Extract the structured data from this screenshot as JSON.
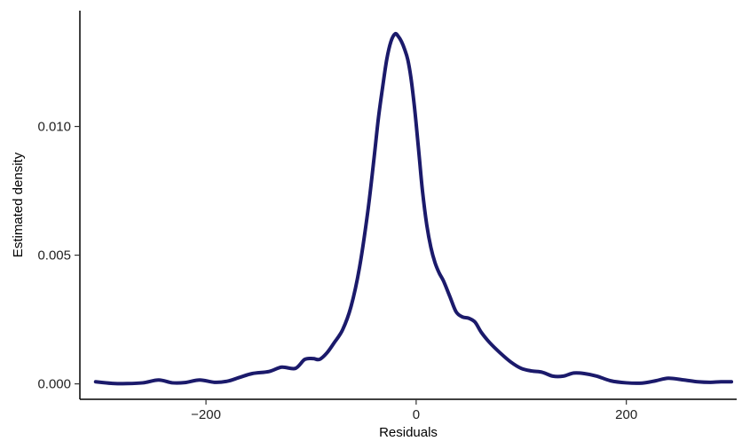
{
  "chart_data": {
    "type": "line",
    "title": "",
    "xlabel": "Residuals",
    "ylabel": "Estimated density",
    "xlim": [
      -320,
      305
    ],
    "ylim": [
      -0.0006,
      0.0145
    ],
    "x_ticks": [
      -200,
      0,
      200
    ],
    "x_tick_labels": [
      "−200",
      "0",
      "200"
    ],
    "y_ticks": [
      0.0,
      0.005,
      0.01
    ],
    "y_tick_labels": [
      "0.000",
      "0.005",
      "0.010"
    ],
    "grid": false,
    "legend": "none",
    "line_color": "#1b1a6b",
    "series": [
      {
        "x": [
          -305,
          -290,
          -275,
          -260,
          -245,
          -232,
          -220,
          -206,
          -192,
          -180,
          -168,
          -156,
          -140,
          -128,
          -115,
          -106,
          -98,
          -92,
          -85,
          -78,
          -70,
          -62,
          -54,
          -46,
          -40,
          -36,
          -32,
          -28,
          -24,
          -20,
          -17,
          -14,
          -11,
          -8,
          -5,
          -2,
          0,
          3,
          6,
          10,
          14,
          18,
          22,
          26,
          32,
          38,
          44,
          50,
          56,
          62,
          70,
          80,
          90,
          100,
          110,
          120,
          130,
          140,
          150,
          160,
          172,
          185,
          200,
          215,
          228,
          240,
          255,
          268,
          280,
          290,
          300
        ],
        "y": [
          8e-05,
          2e-05,
          1e-05,
          4e-05,
          0.00015,
          4e-05,
          5e-05,
          0.00015,
          6e-05,
          0.0001,
          0.00025,
          0.0004,
          0.00048,
          0.00065,
          0.0006,
          0.00095,
          0.00098,
          0.00095,
          0.0012,
          0.0016,
          0.0021,
          0.003,
          0.0045,
          0.0067,
          0.0088,
          0.0103,
          0.0115,
          0.0126,
          0.0133,
          0.0136,
          0.0135,
          0.0133,
          0.013,
          0.0126,
          0.0119,
          0.0109,
          0.0101,
          0.0088,
          0.0075,
          0.0062,
          0.0053,
          0.0047,
          0.0043,
          0.004,
          0.0034,
          0.0028,
          0.0026,
          0.00255,
          0.0024,
          0.002,
          0.0016,
          0.0012,
          0.00085,
          0.0006,
          0.0005,
          0.00045,
          0.0003,
          0.0003,
          0.00042,
          0.0004,
          0.0003,
          0.00012,
          4e-05,
          3e-05,
          0.00012,
          0.00022,
          0.00015,
          8e-05,
          6e-05,
          8e-05,
          8e-05
        ]
      }
    ]
  }
}
